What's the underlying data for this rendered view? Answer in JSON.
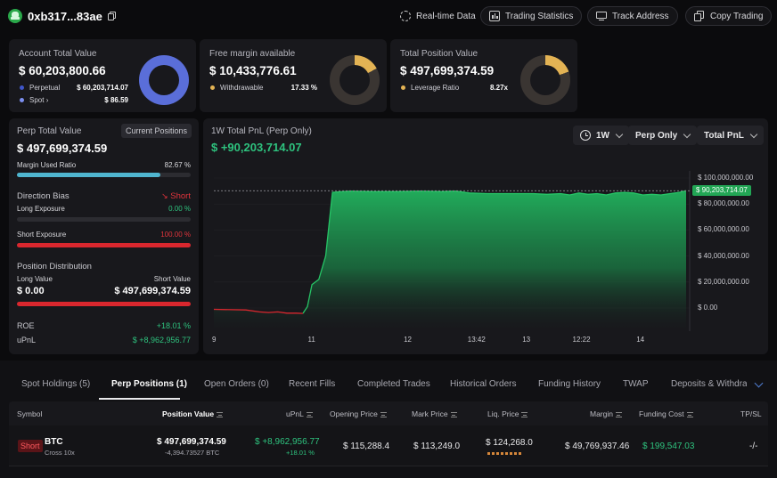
{
  "header": {
    "address": "0xb317...83ae",
    "buttons": {
      "realtime": "Real-time Data",
      "stats": "Trading Statistics",
      "track": "Track Address",
      "copy": "Copy Trading"
    }
  },
  "account": {
    "title": "Account Total Value",
    "value": "$ 60,203,800.66",
    "perpetual_label": "Perpetual",
    "perpetual_value": "$ 60,203,714.07",
    "spot_label": "Spot",
    "spot_value": "$ 86.59"
  },
  "margin": {
    "title": "Free margin available",
    "value": "$ 10,433,776.61",
    "withdrawable_label": "Withdrawable",
    "withdrawable_value": "17.33 %",
    "withdrawable_fraction": 0.1733
  },
  "position": {
    "title": "Total Position Value",
    "value": "$ 497,699,374.59",
    "leverage_label": "Leverage Ratio",
    "leverage_value": "8.27x"
  },
  "perp": {
    "title": "Perp Total Value",
    "current_positions": "Current Positions",
    "value": "$ 497,699,374.59",
    "margin_used_label": "Margin Used Ratio",
    "margin_used_value": "82.67 %",
    "margin_used_fraction": 0.8267,
    "direction_label": "Direction Bias",
    "direction_value": "Short",
    "long_exposure_label": "Long Exposure",
    "long_exposure_value": "0.00 %",
    "long_exposure_fraction": 0,
    "short_exposure_label": "Short Exposure",
    "short_exposure_value": "100.00 %",
    "short_exposure_fraction": 1,
    "distribution_label": "Position Distribution",
    "long_value_label": "Long Value",
    "short_value_label": "Short Value",
    "long_value": "$ 0.00",
    "short_value": "$ 497,699,374.59",
    "roe_label": "ROE",
    "roe_value": "+18.01 %",
    "upnl_label": "uPnL",
    "upnl_value": "$ +8,962,956.77"
  },
  "pnl": {
    "title": "1W Total PnL (Perp Only)",
    "value": "$ +90,203,714.07",
    "range_select": "1W",
    "scope_select": "Perp Only",
    "metric_select": "Total PnL",
    "current_label": "$ 90,203,714.07"
  },
  "chart_data": {
    "type": "area",
    "title": "1W Total PnL (Perp Only)",
    "y_ticks": [
      "$ 100,000,000.00",
      "$ 80,000,000.00",
      "$ 60,000,000.00",
      "$ 40,000,000.00",
      "$ 20,000,000.00",
      "$ 0.00"
    ],
    "x_ticks": [
      "9",
      "11",
      "12",
      "13:42",
      "13",
      "12:22",
      "14"
    ],
    "ylim": [
      0,
      100000000
    ],
    "x": [
      0,
      0.7,
      1.0,
      1.2,
      1.4,
      1.6,
      1.8,
      1.95,
      2.05,
      2.15,
      2.3,
      2.45,
      2.6,
      3.0,
      3.5,
      4.0,
      4.5,
      5.0,
      5.3,
      5.6,
      6.0,
      6.5,
      7.0,
      7.3,
      7.6,
      7.8,
      8.0,
      8.2,
      8.4,
      8.6,
      8.8,
      9.0,
      9.2,
      9.4,
      9.6,
      9.8,
      10.0,
      10.2,
      10.35
    ],
    "values": [
      -1000000,
      -1500000,
      -3000000,
      -3500000,
      -3000000,
      -4000000,
      -4000000,
      -4200000,
      1000000,
      18000000,
      22000000,
      40000000,
      89000000,
      90000000,
      89500000,
      89500000,
      90000000,
      89500000,
      90000000,
      88500000,
      88000000,
      88000000,
      88000000,
      87500000,
      88000000,
      87000000,
      88500000,
      87500000,
      88000000,
      87000000,
      88500000,
      89000000,
      88500000,
      87000000,
      87500000,
      87000000,
      88000000,
      89000000,
      90203714
    ],
    "series": [
      {
        "name": "Total PnL"
      }
    ],
    "colors": {
      "positive": "#22b35e",
      "negative": "#d9272e"
    }
  },
  "tabs": [
    "Spot Holdings (5)",
    "Perp Positions (1)",
    "Open Orders (0)",
    "Recent Fills",
    "Completed Trades",
    "Historical Orders",
    "Funding History",
    "TWAP",
    "Deposits & Withdraw"
  ],
  "table": {
    "headers": {
      "symbol": "Symbol",
      "position_value": "Position Value",
      "upnl": "uPnL",
      "opening_price": "Opening Price",
      "mark_price": "Mark Price",
      "liq_price": "Liq. Price",
      "margin": "Margin",
      "funding_cost": "Funding Cost",
      "tpsl": "TP/SL"
    },
    "row": {
      "side": "Short",
      "coin": "BTC",
      "mode": "Cross 10x",
      "position_value": "$ 497,699,374.59",
      "position_size": "-4,394.73527 BTC",
      "upnl": "$ +8,962,956.77",
      "upnl_pct": "+18.01 %",
      "opening_price": "$ 115,288.4",
      "mark_price": "$ 113,249.0",
      "liq_price": "$ 124,268.0",
      "margin": "$ 49,769,937.46",
      "funding_cost": "$ 199,547.03",
      "tpsl": "-/-"
    }
  }
}
